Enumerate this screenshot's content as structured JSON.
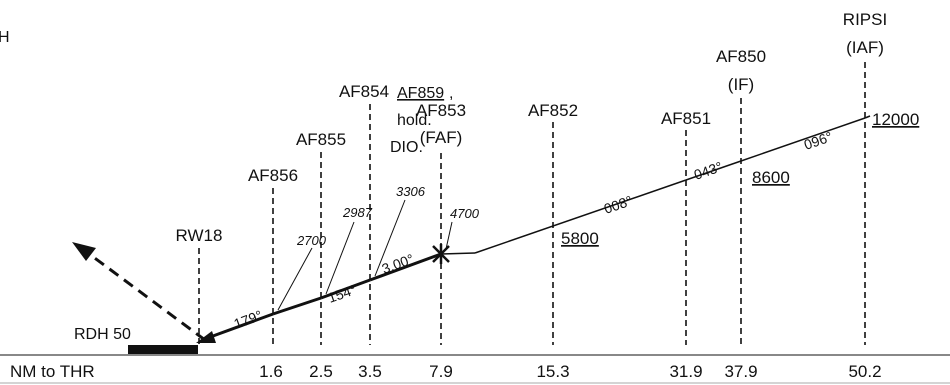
{
  "notes": {
    "line1": "H",
    "line2_prefix": "",
    "line2_link": "AF859",
    "line2_suffix": ",",
    "line3": "hold.",
    "line4": "DIO."
  },
  "fixes": [
    {
      "id": "rw18",
      "name": "RW18",
      "role": "",
      "distance": ""
    },
    {
      "id": "af856",
      "name": "AF856",
      "role": "",
      "distance": "1.6"
    },
    {
      "id": "af855",
      "name": "AF855",
      "role": "",
      "distance": "2.5"
    },
    {
      "id": "af854",
      "name": "AF854",
      "role": "",
      "distance": "3.5"
    },
    {
      "id": "af853",
      "name": "AF853",
      "role": "(FAF)",
      "distance": "7.9"
    },
    {
      "id": "af852",
      "name": "AF852",
      "role": "",
      "distance": "15.3"
    },
    {
      "id": "af851",
      "name": "AF851",
      "role": "",
      "distance": "31.9"
    },
    {
      "id": "af850",
      "name": "AF850",
      "role": "(IF)",
      "distance": "37.9"
    },
    {
      "id": "ripsi",
      "name": "RIPSI",
      "role": "(IAF)",
      "distance": "50.2"
    }
  ],
  "altitudes": {
    "af856": "2700",
    "af855": "2987",
    "af854": "3306",
    "af853": "4700",
    "af852": "5800",
    "af850": "8600",
    "ripsi": "12000"
  },
  "tracks": {
    "final": "179°",
    "seg2": "154°",
    "glidepath": "3.00°",
    "seg4": "008°",
    "seg5": "043°",
    "seg6": "096°"
  },
  "rdh": "RDH 50",
  "distance_axis_label": "NM to THR"
}
